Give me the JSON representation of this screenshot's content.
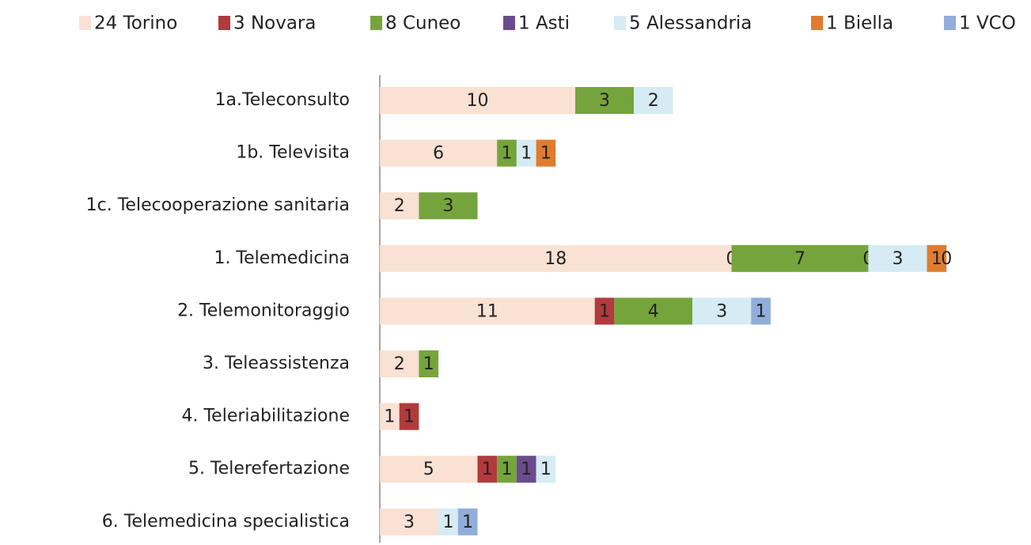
{
  "chart_data": {
    "type": "stacked_bar_horizontal",
    "categories": [
      "1a.Teleconsulto",
      "1b. Televisita",
      "1c. Telecooperazione sanitaria",
      "1. Telemedicina",
      "2. Telemonitoraggio",
      "3. Teleassistenza",
      "4. Teleriabilitazione",
      "5. Telerefertazione",
      "6. Telemedicina specialistica"
    ],
    "series": [
      {
        "name": "24 Torino",
        "color": "#f9e1d3",
        "values": [
          10,
          6,
          2,
          18,
          11,
          2,
          1,
          5,
          3
        ]
      },
      {
        "name": "3 Novara",
        "color": "#b23a3c",
        "values": [
          null,
          null,
          null,
          0,
          1,
          null,
          1,
          1,
          null
        ]
      },
      {
        "name": "8 Cuneo",
        "color": "#76a43c",
        "values": [
          3,
          1,
          3,
          7,
          4,
          1,
          null,
          1,
          null
        ]
      },
      {
        "name": "1 Asti",
        "color": "#6b4b8e",
        "values": [
          null,
          null,
          null,
          0,
          null,
          null,
          null,
          1,
          null
        ]
      },
      {
        "name": "5 Alessandria",
        "color": "#d6ebf3",
        "values": [
          2,
          1,
          null,
          3,
          3,
          null,
          null,
          1,
          1
        ]
      },
      {
        "name": "1 Biella",
        "color": "#e07c30",
        "values": [
          null,
          1,
          null,
          1,
          null,
          null,
          null,
          null,
          null
        ]
      },
      {
        "name": "1 VCO",
        "color": "#90aed9",
        "values": [
          null,
          null,
          null,
          0,
          1,
          null,
          null,
          null,
          1
        ]
      }
    ],
    "xlim": [
      0,
      33
    ],
    "legend": "top"
  }
}
